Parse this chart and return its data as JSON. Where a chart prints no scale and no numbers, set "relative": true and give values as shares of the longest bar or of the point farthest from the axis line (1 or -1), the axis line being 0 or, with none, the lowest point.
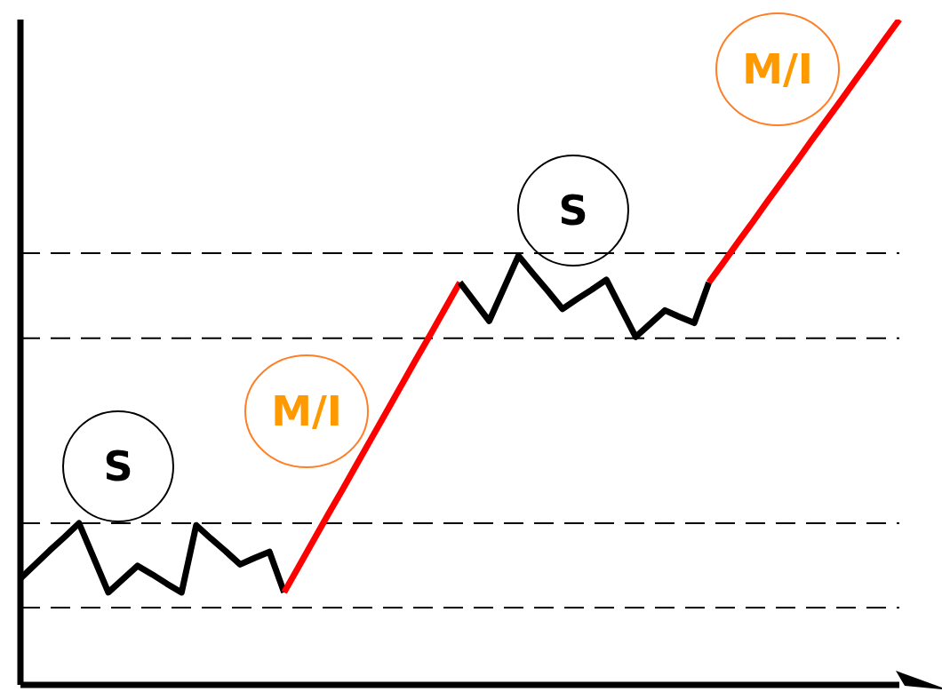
{
  "chart_data": {
    "type": "line",
    "relative": true,
    "categories": [
      null,
      null,
      null,
      null,
      null,
      null,
      null,
      null,
      null,
      null,
      null,
      null,
      null,
      null,
      null,
      null,
      null,
      null,
      null,
      null,
      null,
      null,
      null,
      null,
      null,
      null,
      null,
      null,
      null,
      null,
      null,
      null,
      null,
      null,
      null,
      null,
      null,
      null,
      null,
      null,
      null,
      null,
      null,
      null,
      null,
      null,
      null,
      null,
      null,
      null,
      null,
      null,
      null,
      null,
      null,
      null,
      null,
      null,
      null,
      null,
      null
    ],
    "series": [
      {
        "color": "#000000",
        "values": [
          0.16,
          0.181,
          0.202,
          0.222,
          0.243,
          0.191,
          0.139,
          0.159,
          0.179,
          0.166,
          0.152,
          0.139,
          0.24,
          0.22,
          0.201,
          0.181,
          0.191,
          0.2,
          0.139,
          null,
          null,
          null,
          null,
          null,
          null,
          null,
          null,
          null,
          null,
          null,
          null,
          null,
          null,
          null,
          null,
          null,
          null,
          null,
          null,
          null,
          null,
          null,
          null,
          null,
          null,
          null,
          null,
          null,
          null,
          null,
          null,
          null,
          null,
          null,
          null,
          null,
          null,
          null,
          null,
          null,
          null
        ]
      },
      {
        "color": "#ff0000",
        "values": [
          null,
          null,
          null,
          null,
          null,
          null,
          null,
          null,
          null,
          null,
          null,
          null,
          null,
          null,
          null,
          null,
          null,
          null,
          0.139,
          0.178,
          0.217,
          0.256,
          0.294,
          0.333,
          0.372,
          0.411,
          0.45,
          0.489,
          0.527,
          0.566,
          0.605,
          null,
          null,
          null,
          null,
          null,
          null,
          null,
          null,
          null,
          null,
          null,
          null,
          null,
          null,
          null,
          null,
          null,
          null,
          null,
          null,
          null,
          null,
          null,
          null,
          null,
          null,
          null,
          null,
          null,
          null
        ]
      },
      {
        "color": "#000000",
        "values": [
          null,
          null,
          null,
          null,
          null,
          null,
          null,
          null,
          null,
          null,
          null,
          null,
          null,
          null,
          null,
          null,
          null,
          null,
          null,
          null,
          null,
          null,
          null,
          null,
          null,
          null,
          null,
          null,
          null,
          null,
          0.605,
          0.576,
          0.547,
          0.596,
          0.645,
          0.618,
          0.592,
          0.565,
          0.58,
          0.594,
          0.609,
          0.566,
          0.523,
          0.543,
          0.563,
          0.553,
          0.544,
          0.605,
          null,
          null,
          null,
          null,
          null,
          null,
          null,
          null,
          null,
          null,
          null,
          null,
          null
        ]
      },
      {
        "color": "#ff0000",
        "values": [
          null,
          null,
          null,
          null,
          null,
          null,
          null,
          null,
          null,
          null,
          null,
          null,
          null,
          null,
          null,
          null,
          null,
          null,
          null,
          null,
          null,
          null,
          null,
          null,
          null,
          null,
          null,
          null,
          null,
          null,
          null,
          null,
          null,
          null,
          null,
          null,
          null,
          null,
          null,
          null,
          null,
          null,
          null,
          null,
          null,
          null,
          null,
          0.605,
          0.635,
          0.666,
          0.696,
          0.727,
          0.757,
          0.787,
          0.818,
          0.848,
          0.878,
          0.909,
          0.939,
          0.97,
          1
        ]
      }
    ],
    "ref_lines": [
      {
        "axis": "y",
        "value": 0.649,
        "color": "#000000",
        "line_style": "dashed"
      },
      {
        "axis": "y",
        "value": 0.521,
        "color": "#000000",
        "line_style": "dashed"
      },
      {
        "axis": "y",
        "value": 0.243,
        "color": "#000000",
        "line_style": "dashed"
      },
      {
        "axis": "y",
        "value": 0.116,
        "color": "#000000",
        "line_style": "dashed"
      }
    ],
    "annotations": [
      "S",
      "M/I",
      "S",
      "M/I"
    ],
    "marker": "none",
    "line_style": "solid"
  }
}
